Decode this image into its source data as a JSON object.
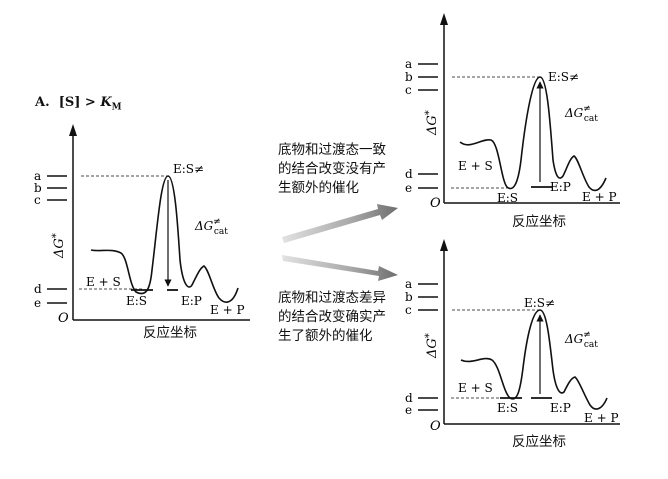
{
  "panel_a": {
    "title_letter": "A.",
    "title_condition_parts": [
      "[S] > ",
      "K",
      "M"
    ],
    "ylabel_symbol": "ΔG",
    "ylabel_star": "*",
    "origin": "O",
    "xlabel": "反应坐标",
    "levels": [
      "a",
      "b",
      "c",
      "d",
      "e"
    ],
    "labels": {
      "ts": "E:S≠",
      "es_free": "E + S",
      "es": "E:S",
      "ep": "E:P",
      "ep_free": "E + P",
      "dg": "ΔG",
      "dg_sup": "≠",
      "dg_sub": "cat"
    }
  },
  "panel_b1": {
    "ylabel_symbol": "ΔG",
    "ylabel_star": "*",
    "origin": "O",
    "xlabel": "反应坐标",
    "levels": [
      "a",
      "b",
      "c",
      "d",
      "e"
    ],
    "labels": {
      "ts": "E:S≠",
      "es_free": "E + S",
      "es": "E:S",
      "ep": "E:P",
      "ep_free": "E + P",
      "dg": "ΔG",
      "dg_sup": "≠",
      "dg_sub": "cat"
    }
  },
  "panel_b2": {
    "ylabel_symbol": "ΔG",
    "ylabel_star": "*",
    "origin": "O",
    "xlabel": "反应坐标",
    "levels": [
      "a",
      "b",
      "c",
      "d",
      "e"
    ],
    "labels": {
      "ts": "E:S≠",
      "es_free": "E + S",
      "es": "E:S",
      "ep": "E:P",
      "ep_free": "E + P",
      "dg": "ΔG",
      "dg_sup": "≠",
      "dg_sub": "cat"
    }
  },
  "captions": {
    "top": [
      "底物和过渡态一致",
      "的结合改变没有产",
      "生额外的催化"
    ],
    "bottom": [
      "底物和过渡态差异",
      "的结合改变确实产",
      "生了额外的催化"
    ]
  },
  "colors": {
    "ink": "#111111",
    "arrow_light": "#d9d9d9",
    "arrow_dark": "#7a7a7a"
  }
}
